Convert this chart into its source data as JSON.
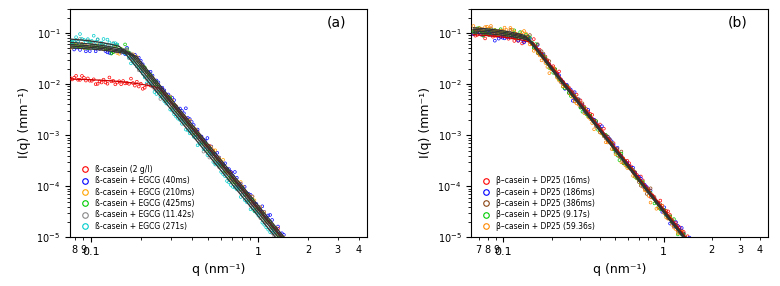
{
  "panel_a": {
    "label": "(a)",
    "xlabel": "q (nm⁻¹)",
    "ylabel": "I(q) (mm⁻¹)",
    "xlim": [
      0.075,
      4.5
    ],
    "ylim": [
      1e-05,
      0.3
    ],
    "series": [
      {
        "label": "ß-casein (2 g/l)",
        "color": "#ff0000",
        "I0": 0.013,
        "Rg": 4.5,
        "line_color": "#cc0000"
      },
      {
        "label": "ß-casein + EGCG (40ms)",
        "color": "#0000ff",
        "I0": 0.055,
        "Rg": 6.2,
        "line_color": "#333333"
      },
      {
        "label": "ß-casein + EGCG (210ms)",
        "color": "#ffa500",
        "I0": 0.06,
        "Rg": 6.5,
        "line_color": "#333333"
      },
      {
        "label": "ß-casein + EGCG (425ms)",
        "color": "#00cc00",
        "I0": 0.065,
        "Rg": 6.8,
        "line_color": "#333333"
      },
      {
        "label": "ß-casein + EGCG (11.42s)",
        "color": "#888888",
        "I0": 0.072,
        "Rg": 7.2,
        "line_color": "#333333"
      },
      {
        "label": "ß-casein + EGCG (271s)",
        "color": "#00cccc",
        "I0": 0.085,
        "Rg": 7.8,
        "line_color": "#333333"
      }
    ]
  },
  "panel_b": {
    "label": "(b)",
    "xlabel": "q (nm⁻¹)",
    "ylabel": "I(q) (mm⁻¹)",
    "xlim": [
      0.063,
      4.5
    ],
    "ylim": [
      1e-05,
      0.3
    ],
    "series": [
      {
        "label": "β–casein + DP25 (16ms)",
        "color": "#ff0000",
        "I0": 0.1,
        "Rg": 7.5,
        "line_color": "#cc0000"
      },
      {
        "label": "β–casein + DP25 (186ms)",
        "color": "#0000ff",
        "I0": 0.11,
        "Rg": 7.8,
        "line_color": "#333333"
      },
      {
        "label": "β–casein + DP25 (386ms)",
        "color": "#8B4513",
        "I0": 0.12,
        "Rg": 8.0,
        "line_color": "#333333"
      },
      {
        "label": "β–casein + DP25 (9.17s)",
        "color": "#00cc00",
        "I0": 0.13,
        "Rg": 8.3,
        "line_color": "#333333"
      },
      {
        "label": "β–casein + DP25 (59.36s)",
        "color": "#ff8800",
        "I0": 0.14,
        "Rg": 8.5,
        "line_color": "#333333"
      }
    ]
  }
}
